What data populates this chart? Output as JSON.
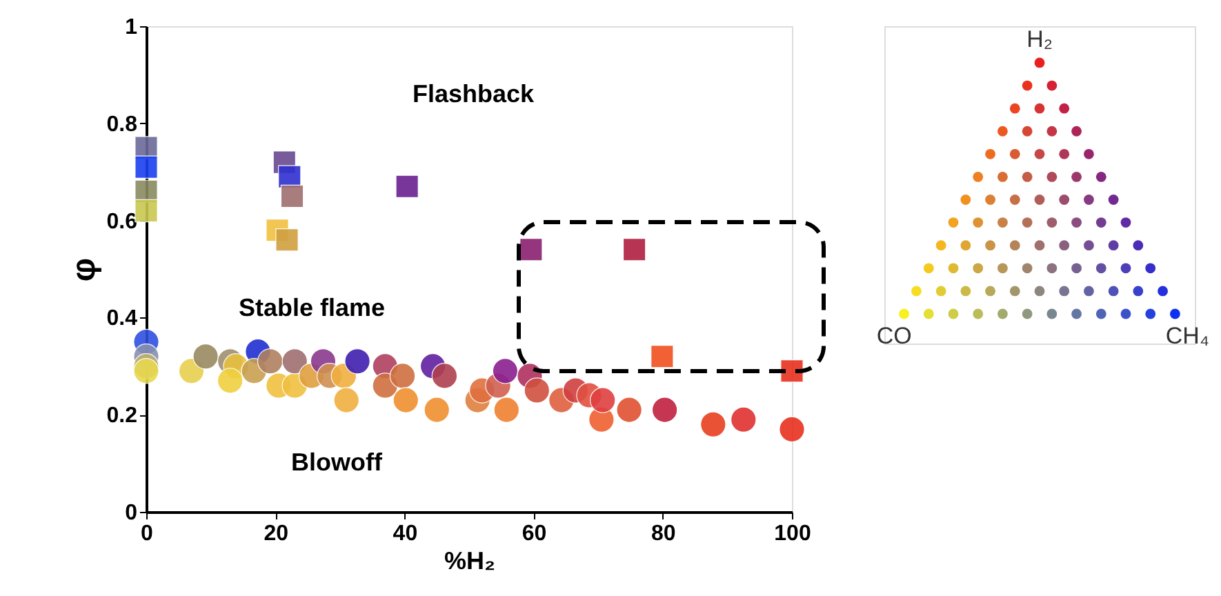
{
  "chart_data": [
    {
      "type": "scatter",
      "xlabel": "%H₂",
      "ylabel": "φ",
      "xlim": [
        0,
        100
      ],
      "ylim": [
        0,
        1
      ],
      "xticks": [
        0,
        20,
        40,
        60,
        80,
        100
      ],
      "yticks": [
        0,
        0.2,
        0.4,
        0.6,
        0.8,
        1
      ],
      "grid": false,
      "series": [
        {
          "marker": "circle",
          "x": [
            0,
            0,
            0,
            0,
            7,
            9.2,
            13,
            13.9,
            13,
            17.3,
            16.7,
            19.2,
            20.5,
            23,
            23,
            25.6,
            27.4,
            28.4,
            30.6,
            31,
            32.7,
            37,
            37,
            39.7,
            40.2,
            45,
            44.4,
            46.2,
            51.3,
            52,
            54.5,
            55.6,
            55.8,
            59.4,
            60.5,
            64.3,
            66.5,
            68.6,
            70.5,
            70.7,
            74.8,
            80.3,
            87.8,
            92.5,
            100
          ],
          "values": [
            0.35,
            0.32,
            0.3,
            0.29,
            0.29,
            0.32,
            0.31,
            0.3,
            0.27,
            0.33,
            0.29,
            0.31,
            0.26,
            0.26,
            0.31,
            0.28,
            0.31,
            0.28,
            0.28,
            0.23,
            0.31,
            0.3,
            0.26,
            0.28,
            0.23,
            0.21,
            0.3,
            0.28,
            0.23,
            0.25,
            0.26,
            0.29,
            0.21,
            0.28,
            0.25,
            0.23,
            0.25,
            0.24,
            0.19,
            0.23,
            0.21,
            0.21,
            0.18,
            0.19,
            0.17
          ],
          "colors": [
            "#3050e0",
            "#8890b0",
            "#c0b070",
            "#e8d850",
            "#e8d050",
            "#9a8a60",
            "#a09070",
            "#e8c040",
            "#f0d040",
            "#2030d0",
            "#c8a050",
            "#b08060",
            "#f0c040",
            "#f0c040",
            "#a07070",
            "#e0a040",
            "#8a3a90",
            "#d09050",
            "#f0b040",
            "#f0b040",
            "#4020b0",
            "#b04060",
            "#d07040",
            "#d07040",
            "#f09030",
            "#f09030",
            "#6020a0",
            "#b04050",
            "#e08040",
            "#e07040",
            "#d06050",
            "#8a2090",
            "#f08030",
            "#b03060",
            "#d05040",
            "#e06040",
            "#d04040",
            "#e05040",
            "#f06030",
            "#e04040",
            "#e05030",
            "#c02040",
            "#e84020",
            "#e03030",
            "#e83020"
          ]
        },
        {
          "marker": "square",
          "x": [
            0,
            0,
            0,
            0,
            21.4,
            22.2,
            22.6,
            20.3,
            21.8,
            40.4,
            59.6,
            75.6,
            79.9,
            100
          ],
          "values": [
            0.75,
            0.71,
            0.66,
            0.62,
            0.72,
            0.69,
            0.65,
            0.58,
            0.56,
            0.67,
            0.54,
            0.54,
            0.32,
            0.29
          ],
          "colors": [
            "#6a6a9a",
            "#1a40f0",
            "#8a8a60",
            "#c8c850",
            "#6a4a90",
            "#3030d0",
            "#a07070",
            "#f0c040",
            "#d0a040",
            "#6a2090",
            "#8a2070",
            "#b02040",
            "#f05020",
            "#e83020"
          ]
        }
      ],
      "annotations": [
        "Flashback",
        "Stable flame",
        "Blowoff"
      ]
    },
    {
      "type": "other",
      "categories": [
        "H₂",
        "CO",
        "CH₄"
      ],
      "colors": [
        "#e82020",
        "#f8f020",
        "#1030f0"
      ]
    }
  ]
}
